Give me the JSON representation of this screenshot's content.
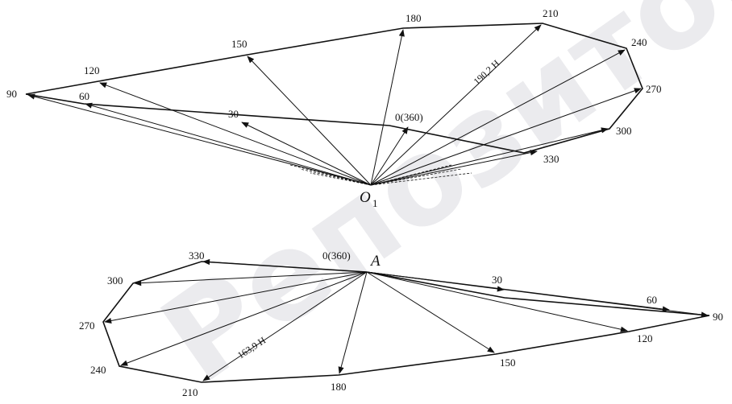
{
  "watermark": "Репозиторий БНТУ",
  "upper": {
    "pole_letter": "O",
    "pole_subscript": "1",
    "magnitude_label": "190,2 Н",
    "vertex_labels": [
      "0(360)",
      "30",
      "60",
      "90",
      "120",
      "150",
      "180",
      "210",
      "240",
      "270",
      "300",
      "330"
    ]
  },
  "lower": {
    "pole_letter": "A",
    "magnitude_label": "163,9 Н",
    "vertex_labels": [
      "0(360)",
      "30",
      "60",
      "90",
      "120",
      "150",
      "180",
      "210",
      "240",
      "270",
      "300",
      "330"
    ]
  }
}
